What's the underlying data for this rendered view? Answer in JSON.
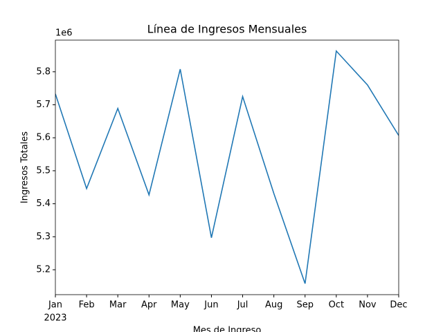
{
  "chart_data": {
    "type": "line",
    "title": "Línea de Ingresos Mensuales",
    "x_label": "Mes de Ingreso",
    "y_label": "Ingresos Totales",
    "y_offset_label": "1e6",
    "year_label": "2023",
    "categories": [
      "Jan",
      "Feb",
      "Mar",
      "Apr",
      "May",
      "Jun",
      "Jul",
      "Aug",
      "Sep",
      "Oct",
      "Nov",
      "Dec"
    ],
    "series": [
      {
        "name": "Ingresos Totales",
        "color": "#1f77b4",
        "values": [
          5.733,
          5.446,
          5.689,
          5.427,
          5.808,
          5.297,
          5.725,
          5.431,
          5.158,
          5.863,
          5.76,
          5.607
        ]
      }
    ],
    "ylim": [
      5.1245,
      5.896
    ],
    "yticks": [
      5.2,
      5.3,
      5.4,
      5.5,
      5.6,
      5.7,
      5.8
    ],
    "grid": false
  }
}
